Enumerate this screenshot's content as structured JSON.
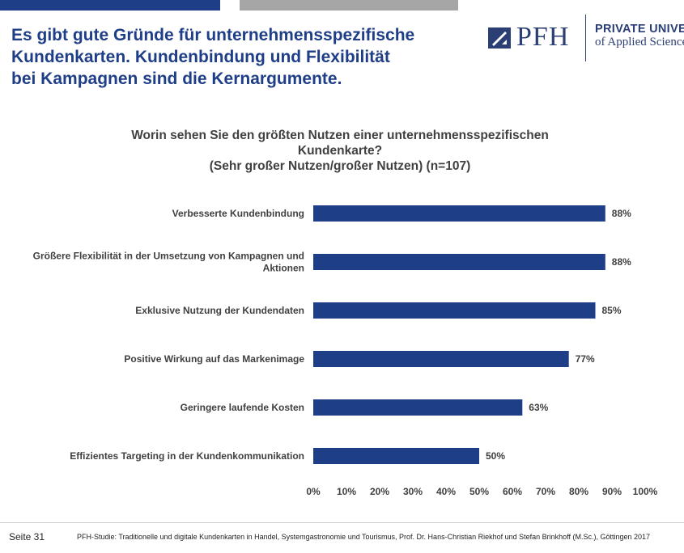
{
  "slide": {
    "title_lines": [
      "Es gibt gute Gründe für unternehmensspezifische",
      "Kundenkarten. Kundenbindung und Flexibilität",
      "bei Kampagnen sind die Kernargumente."
    ],
    "page_number": "Seite 31",
    "source": "PFH-Studie: Traditionelle und digitale Kundenkarten in Handel, Systemgastronomie und Tourismus, Prof. Dr. Hans-Christian Riekhof und Stefan Brinkhoff (M.Sc.), Göttingen 2017"
  },
  "logo": {
    "wordmark": "PFH",
    "line1": "PRIVATE UNIVERSITY",
    "line2": "of Applied Sciences"
  },
  "colors": {
    "accent": "#1f3e88",
    "bar": "#1f3e88",
    "top_bar_gray": "#a6a6a6"
  },
  "chart_data": {
    "type": "bar",
    "orientation": "horizontal",
    "title_lines": [
      "Worin sehen Sie den größten Nutzen einer unternehmensspezifischen",
      "Kundenkarte?",
      "(Sehr großer Nutzen/großer Nutzen) (n=107)"
    ],
    "categories": [
      [
        "Verbesserte Kundenbindung"
      ],
      [
        "Größere Flexibilität in der Umsetzung von Kampagnen und",
        "Aktionen"
      ],
      [
        "Exklusive Nutzung der Kundendaten"
      ],
      [
        "Positive Wirkung auf das Markenimage"
      ],
      [
        "Geringere laufende Kosten"
      ],
      [
        "Effizientes Targeting in der Kundenkommunikation"
      ]
    ],
    "values": [
      88,
      88,
      85,
      77,
      63,
      50
    ],
    "value_labels": [
      "88%",
      "88%",
      "85%",
      "77%",
      "63%",
      "50%"
    ],
    "xlim": [
      0,
      100
    ],
    "x_ticks": [
      "0%",
      "10%",
      "20%",
      "30%",
      "40%",
      "50%",
      "60%",
      "70%",
      "80%",
      "90%",
      "100%"
    ],
    "grid": false,
    "legend": "none"
  }
}
